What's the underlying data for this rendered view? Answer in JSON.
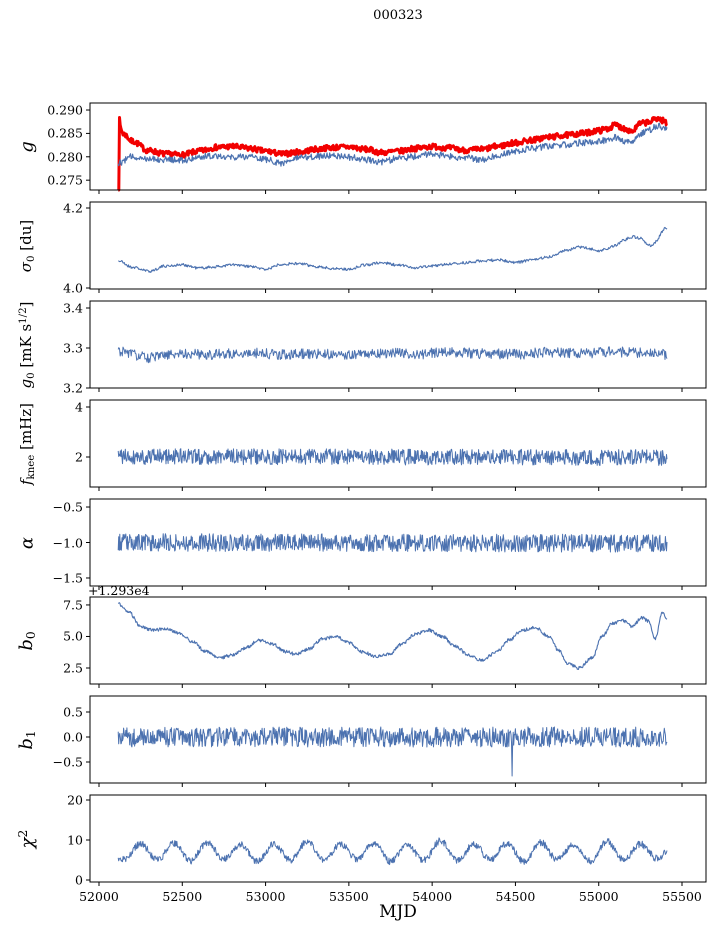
{
  "chart_data": {
    "type": "line",
    "title": "000323",
    "xlabel": "MJD",
    "xlim": [
      51946,
      55644
    ],
    "x_data_range": [
      52115,
      55410
    ],
    "grid": false,
    "legend": null,
    "colors": {
      "blue": "#4c72b0",
      "red": "#f20000",
      "axis": "#000000",
      "background": "#ffffff"
    },
    "xticks": [
      {
        "v": 52000,
        "label": "52000"
      },
      {
        "v": 52500,
        "label": "52500"
      },
      {
        "v": 53000,
        "label": "53000"
      },
      {
        "v": 53500,
        "label": "53500"
      },
      {
        "v": 54000,
        "label": "54000"
      },
      {
        "v": 54500,
        "label": "54500"
      },
      {
        "v": 55000,
        "label": "55000"
      },
      {
        "v": 55500,
        "label": "55500"
      }
    ],
    "panels": [
      {
        "name": "g",
        "ylabel_segments": [
          {
            "t": "g",
            "k": "i"
          }
        ],
        "ylabel_class": "short",
        "ylim": [
          0.2729,
          0.2915
        ],
        "yticks": [
          {
            "v": 0.275,
            "label": "0.275"
          },
          {
            "v": 0.28,
            "label": "0.280"
          },
          {
            "v": 0.285,
            "label": "0.285"
          },
          {
            "v": 0.29,
            "label": "0.290"
          }
        ],
        "series": [
          {
            "name": "g-thick-red",
            "color": "#f20000",
            "stroke_width": 3,
            "seed": 7,
            "n": 800,
            "noise": 0.0006,
            "x_start": 52115,
            "x_end": 55410,
            "kx": [
              52115,
              52150,
              52200,
              52300,
              52400,
              52500,
              52600,
              52700,
              52800,
              52900,
              53000,
              53100,
              53200,
              53300,
              53400,
              53500,
              53600,
              53700,
              53800,
              53900,
              54000,
              54100,
              54200,
              54300,
              54400,
              54500,
              54600,
              54700,
              54800,
              54900,
              55000,
              55050,
              55100,
              55150,
              55200,
              55250,
              55300,
              55350,
              55400,
              55410
            ],
            "ky": [
              0.2872,
              0.2848,
              0.2833,
              0.2813,
              0.2806,
              0.2804,
              0.2812,
              0.282,
              0.2822,
              0.2818,
              0.2812,
              0.2806,
              0.281,
              0.2816,
              0.282,
              0.2821,
              0.2816,
              0.2809,
              0.2812,
              0.2818,
              0.2822,
              0.2819,
              0.2814,
              0.2816,
              0.2823,
              0.283,
              0.2836,
              0.2842,
              0.2846,
              0.285,
              0.2856,
              0.286,
              0.2868,
              0.2861,
              0.2855,
              0.2871,
              0.2874,
              0.2882,
              0.2876,
              0.2864
            ],
            "spikes": [
              {
                "x": 52117,
                "v": 0.2727
              },
              {
                "x": 52121,
                "v": 0.2728
              },
              {
                "x": 52125,
                "v": 0.2884
              }
            ]
          },
          {
            "name": "g-thin-blue",
            "color": "#4c72b0",
            "stroke_width": 1.2,
            "seed": 12,
            "n": 800,
            "noise": 0.0007,
            "x_start": 52115,
            "x_end": 55410,
            "kx": [
              52115,
              52200,
              52300,
              52400,
              52500,
              52600,
              52700,
              52800,
              52900,
              53000,
              53100,
              53200,
              53300,
              53400,
              53500,
              53600,
              53700,
              53800,
              53900,
              54000,
              54100,
              54200,
              54300,
              54400,
              54500,
              54600,
              54700,
              54800,
              54900,
              55000,
              55100,
              55150,
              55200,
              55250,
              55300,
              55350,
              55400,
              55410
            ],
            "ky": [
              0.2787,
              0.28,
              0.2797,
              0.2794,
              0.2792,
              0.28,
              0.2803,
              0.2799,
              0.2801,
              0.2794,
              0.2787,
              0.2797,
              0.2801,
              0.2803,
              0.2799,
              0.2794,
              0.2789,
              0.2797,
              0.2801,
              0.2806,
              0.2801,
              0.2797,
              0.2794,
              0.2804,
              0.2812,
              0.2818,
              0.2823,
              0.2826,
              0.283,
              0.2833,
              0.2841,
              0.2834,
              0.2829,
              0.2849,
              0.2857,
              0.2866,
              0.286,
              0.2858
            ],
            "spikes": []
          }
        ]
      },
      {
        "name": "sigma0",
        "ylabel_segments": [
          {
            "t": "σ",
            "k": "i"
          },
          {
            "t": "0",
            "k": "sub"
          },
          {
            "t": " [du]",
            "k": "r"
          }
        ],
        "ylabel_class": "long",
        "ylim": [
          3.9975,
          4.215
        ],
        "yticks": [
          {
            "v": 4.0,
            "label": "4.0"
          },
          {
            "v": 4.2,
            "label": "4.2"
          }
        ],
        "series": [
          {
            "name": "sigma0-line",
            "color": "#4c72b0",
            "stroke_width": 1.1,
            "seed": 21,
            "n": 800,
            "noise": 0.0035,
            "x_start": 52115,
            "x_end": 55410,
            "kx": [
              52115,
              52200,
              52300,
              52400,
              52500,
              52600,
              52700,
              52800,
              52900,
              53000,
              53100,
              53200,
              53300,
              53400,
              53500,
              53600,
              53700,
              53800,
              53900,
              54000,
              54100,
              54200,
              54300,
              54400,
              54500,
              54600,
              54700,
              54800,
              54900,
              54950,
              55000,
              55050,
              55100,
              55150,
              55200,
              55250,
              55280,
              55320,
              55350,
              55380,
              55400,
              55410
            ],
            "ky": [
              4.068,
              4.052,
              4.042,
              4.055,
              4.058,
              4.05,
              4.053,
              4.058,
              4.054,
              4.047,
              4.06,
              4.061,
              4.054,
              4.049,
              4.047,
              4.058,
              4.063,
              4.057,
              4.051,
              4.055,
              4.06,
              4.063,
              4.068,
              4.07,
              4.064,
              4.07,
              4.078,
              4.094,
              4.103,
              4.098,
              4.092,
              4.098,
              4.106,
              4.12,
              4.128,
              4.124,
              4.113,
              4.105,
              4.118,
              4.14,
              4.15,
              4.145
            ],
            "spikes": []
          }
        ]
      },
      {
        "name": "g0",
        "ylabel_segments": [
          {
            "t": "g",
            "k": "i"
          },
          {
            "t": "0",
            "k": "sub"
          },
          {
            "t": " [mK s",
            "k": "r"
          },
          {
            "t": "1/2",
            "k": "sup"
          },
          {
            "t": "]",
            "k": "r"
          }
        ],
        "ylabel_class": "long",
        "ylim": [
          3.2,
          3.4175
        ],
        "yticks": [
          {
            "v": 3.2,
            "label": "3.2"
          },
          {
            "v": 3.3,
            "label": "3.3"
          },
          {
            "v": 3.4,
            "label": "3.4"
          }
        ],
        "series": [
          {
            "name": "g0-line",
            "color": "#4c72b0",
            "stroke_width": 1.0,
            "seed": 31,
            "n": 800,
            "noise": 0.013,
            "x_start": 52115,
            "x_end": 55410,
            "kx": [
              52115,
              52300,
              52500,
              52700,
              52900,
              53100,
              53300,
              53500,
              53700,
              53900,
              54100,
              54300,
              54500,
              54700,
              54900,
              55100,
              55300,
              55410
            ],
            "ky": [
              3.292,
              3.276,
              3.286,
              3.284,
              3.288,
              3.284,
              3.286,
              3.283,
              3.288,
              3.285,
              3.29,
              3.286,
              3.284,
              3.289,
              3.287,
              3.29,
              3.287,
              3.284
            ],
            "spikes": []
          }
        ]
      },
      {
        "name": "fknee",
        "ylabel_segments": [
          {
            "t": "f",
            "k": "i"
          },
          {
            "t": "knee",
            "k": "sub"
          },
          {
            "t": " [mHz]",
            "k": "r"
          }
        ],
        "ylabel_class": "long",
        "ylim": [
          0.8,
          4.28
        ],
        "yticks": [
          {
            "v": 2,
            "label": "2"
          },
          {
            "v": 4,
            "label": "4"
          }
        ],
        "series": [
          {
            "name": "fknee-line",
            "color": "#4c72b0",
            "stroke_width": 1.0,
            "seed": 41,
            "n": 1000,
            "noise": 0.32,
            "x_start": 52115,
            "x_end": 55410,
            "kx": [
              52115,
              55410
            ],
            "ky": [
              2.02,
              1.98
            ],
            "spikes": []
          }
        ]
      },
      {
        "name": "alpha",
        "ylabel_segments": [
          {
            "t": "α",
            "k": "i"
          }
        ],
        "ylabel_class": "short",
        "ylim": [
          -1.613,
          -0.387
        ],
        "yticks": [
          {
            "v": -0.5,
            "label": "−0.5"
          },
          {
            "v": -1.0,
            "label": "−1.0"
          },
          {
            "v": -1.5,
            "label": "−1.5"
          }
        ],
        "series": [
          {
            "name": "alpha-line",
            "color": "#4c72b0",
            "stroke_width": 1.0,
            "seed": 53,
            "n": 1000,
            "noise": 0.125,
            "x_start": 52115,
            "x_end": 55410,
            "kx": [
              52115,
              55410
            ],
            "ky": [
              -1.0,
              -1.01
            ],
            "spikes": []
          }
        ]
      },
      {
        "name": "b0",
        "ylabel_segments": [
          {
            "t": "b",
            "k": "i"
          },
          {
            "t": "0",
            "k": "sub"
          }
        ],
        "ylabel_class": "short",
        "offset_text": "+1.293e4",
        "ylim": [
          1.23,
          8.13
        ],
        "yticks": [
          {
            "v": 2.5,
            "label": "2.5"
          },
          {
            "v": 5.0,
            "label": "5.0"
          },
          {
            "v": 7.5,
            "label": "7.5"
          }
        ],
        "series": [
          {
            "name": "b0-line",
            "color": "#4c72b0",
            "stroke_width": 1.1,
            "seed": 61,
            "n": 900,
            "noise": 0.13,
            "x_start": 52115,
            "x_end": 55410,
            "kx": [
              52115,
              52180,
              52250,
              52320,
              52400,
              52480,
              52560,
              52640,
              52720,
              52800,
              52880,
              52960,
              53040,
              53120,
              53180,
              53260,
              53340,
              53420,
              53500,
              53580,
              53660,
              53740,
              53820,
              53900,
              53980,
              54060,
              54140,
              54220,
              54300,
              54380,
              54460,
              54540,
              54620,
              54700,
              54760,
              54820,
              54880,
              54960,
              55020,
              55080,
              55140,
              55200,
              55260,
              55300,
              55340,
              55380,
              55410
            ],
            "ky": [
              7.6,
              6.9,
              5.8,
              5.5,
              5.6,
              5.3,
              4.6,
              3.8,
              3.3,
              3.5,
              4.1,
              4.7,
              4.4,
              3.8,
              3.6,
              4.0,
              4.8,
              5.0,
              4.5,
              3.8,
              3.4,
              3.6,
              4.4,
              5.2,
              5.5,
              5.0,
              4.2,
              3.5,
              3.1,
              3.7,
              4.7,
              5.5,
              5.7,
              5.0,
              3.9,
              2.8,
              2.5,
              3.3,
              5.0,
              6.0,
              6.3,
              5.8,
              6.5,
              6.2,
              4.8,
              6.9,
              6.4
            ],
            "spikes": []
          }
        ]
      },
      {
        "name": "b1",
        "ylabel_segments": [
          {
            "t": "b",
            "k": "i"
          },
          {
            "t": "1",
            "k": "sub"
          }
        ],
        "ylabel_class": "short",
        "ylim": [
          -0.92,
          0.82
        ],
        "yticks": [
          {
            "v": -0.5,
            "label": "−0.5"
          },
          {
            "v": 0.0,
            "label": "0.0"
          },
          {
            "v": 0.5,
            "label": "0.5"
          }
        ],
        "series": [
          {
            "name": "b1-line",
            "color": "#4c72b0",
            "stroke_width": 1.0,
            "seed": 71,
            "n": 1000,
            "noise": 0.2,
            "x_start": 52115,
            "x_end": 55410,
            "kx": [
              52115,
              55410
            ],
            "ky": [
              0.0,
              0.0
            ],
            "spikes": [
              {
                "x": 54480,
                "v": -0.78
              }
            ]
          }
        ]
      },
      {
        "name": "chi2",
        "ylabel_segments": [
          {
            "t": "χ",
            "k": "i"
          },
          {
            "t": "2",
            "k": "sup"
          }
        ],
        "ylabel_class": "short",
        "ylim": [
          -0.5,
          21.25
        ],
        "yticks": [
          {
            "v": 0,
            "label": "0"
          },
          {
            "v": 10,
            "label": "10"
          },
          {
            "v": 20,
            "label": "20"
          }
        ],
        "series": [
          {
            "name": "chi2-line",
            "color": "#4c72b0",
            "stroke_width": 1.0,
            "seed": 83,
            "n": 1000,
            "noise": 0.85,
            "x_start": 52115,
            "x_end": 55410,
            "kx": [
              52150,
              52250,
              52350,
              52450,
              52550,
              52650,
              52750,
              52850,
              52950,
              53050,
              53150,
              53250,
              53350,
              53450,
              53550,
              53650,
              53750,
              53850,
              53950,
              54050,
              54150,
              54250,
              54350,
              54450,
              54550,
              54650,
              54750,
              54850,
              54950,
              55050,
              55150,
              55250,
              55350,
              55410
            ],
            "ky": [
              5.2,
              9.0,
              5.0,
              9.2,
              4.8,
              9.4,
              5.2,
              8.8,
              4.6,
              9.0,
              5.0,
              9.6,
              4.8,
              9.0,
              5.2,
              9.2,
              4.6,
              8.8,
              5.0,
              9.8,
              4.8,
              9.0,
              5.0,
              9.2,
              4.6,
              9.4,
              5.2,
              9.0,
              4.8,
              9.6,
              5.0,
              9.0,
              5.4,
              7.0
            ],
            "spikes": []
          }
        ]
      }
    ]
  }
}
